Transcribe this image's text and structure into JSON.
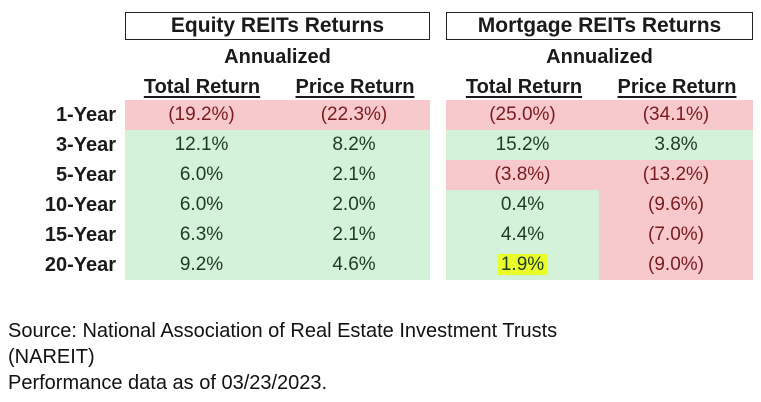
{
  "chart_data": {
    "type": "table",
    "groups": [
      {
        "title": "Equity REITs Returns",
        "subtitle": "Annualized",
        "columns": [
          "Total Return",
          "Price Return"
        ]
      },
      {
        "title": "Mortgage REITs Returns",
        "subtitle": "Annualized",
        "columns": [
          "Total Return",
          "Price Return"
        ]
      }
    ],
    "rows": [
      {
        "label": "1-Year",
        "values": [
          "(19.2%)",
          "(22.3%)",
          "(25.0%)",
          "(34.1%)"
        ],
        "numeric": [
          -19.2,
          -22.3,
          -25.0,
          -34.1
        ]
      },
      {
        "label": "3-Year",
        "values": [
          "12.1%",
          "8.2%",
          "15.2%",
          "3.8%"
        ],
        "numeric": [
          12.1,
          8.2,
          15.2,
          3.8
        ]
      },
      {
        "label": "5-Year",
        "values": [
          "6.0%",
          "2.1%",
          "(3.8%)",
          "(13.2%)"
        ],
        "numeric": [
          6.0,
          2.1,
          -3.8,
          -13.2
        ]
      },
      {
        "label": "10-Year",
        "values": [
          "6.0%",
          "2.0%",
          "0.4%",
          "(9.6%)"
        ],
        "numeric": [
          6.0,
          2.0,
          0.4,
          -9.6
        ]
      },
      {
        "label": "15-Year",
        "values": [
          "6.3%",
          "2.1%",
          "4.4%",
          "(7.0%)"
        ],
        "numeric": [
          6.3,
          2.1,
          4.4,
          -7.0
        ]
      },
      {
        "label": "20-Year",
        "values": [
          "9.2%",
          "4.6%",
          "1.9%",
          "(9.0%)"
        ],
        "numeric": [
          9.2,
          4.6,
          1.9,
          -9.0
        ]
      }
    ],
    "highlight": {
      "row": 5,
      "col": 2,
      "color": "#eaff2a"
    },
    "colors": {
      "positive": "#d4f1d9",
      "negative": "#f7c9cc"
    }
  },
  "source": {
    "line1": "Source: National Association of Real Estate Investment Trusts",
    "line2": "(NAREIT)",
    "line3": "Performance data as of 03/23/2023."
  }
}
